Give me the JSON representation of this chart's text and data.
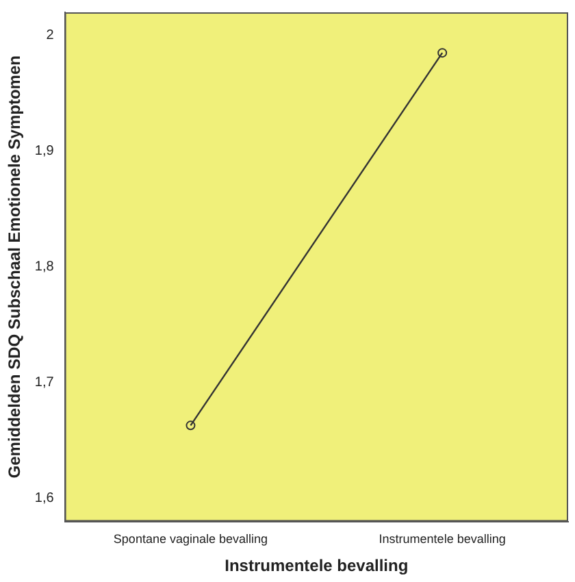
{
  "chart_data": {
    "type": "line",
    "xlabel": "Instrumentele bevalling",
    "ylabel": "Gemiddelden SDQ Subschaal Emotionele Symptomen",
    "categories": [
      "Spontane vaginale bevalling",
      "Instrumentele bevalling"
    ],
    "series": [
      {
        "color": "#333333",
        "values": [
          1.663,
          1.985
        ]
      }
    ],
    "ylim": [
      1.58,
      2.02
    ],
    "yticks": [
      {
        "value": 1.6,
        "label": "1,6"
      },
      {
        "value": 1.7,
        "label": "1,7"
      },
      {
        "value": 1.8,
        "label": "1,8"
      },
      {
        "value": 1.9,
        "label": "1,9"
      },
      {
        "value": 2,
        "label": "2"
      }
    ],
    "grid": false,
    "legend": false,
    "marker": "circle",
    "line_style": "solid"
  }
}
